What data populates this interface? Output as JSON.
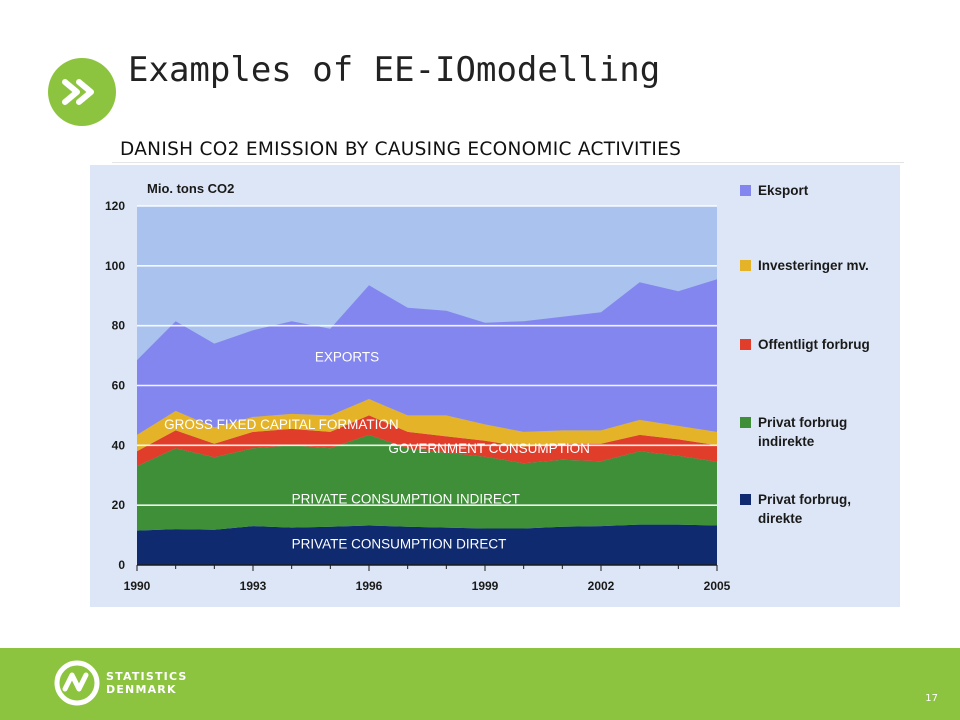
{
  "slide": {
    "title": "Examples of EE-IOmodelling",
    "badge_symbol": ">>",
    "subtitle": "DANISH CO2 EMISSION BY CAUSING ECONOMIC ACTIVITIES",
    "page_number": "17",
    "brand_line1": "STATISTICS",
    "brand_line2": "DENMARK"
  },
  "colors": {
    "accent_green": "#8dc43f",
    "chart_bg": "#dde6f6",
    "plot_bg": "#a9c3ee",
    "gridline": "#ffffff"
  },
  "chart_data": {
    "type": "area",
    "stacked": true,
    "unit_label": "Mio. tons CO2",
    "x": [
      1990,
      1991,
      1992,
      1993,
      1994,
      1995,
      1996,
      1997,
      1998,
      1999,
      2000,
      2001,
      2002,
      2003,
      2004,
      2005
    ],
    "xtick_labels": [
      "1990",
      "1993",
      "1996",
      "1999",
      "2002",
      "2005"
    ],
    "ylim": [
      0,
      120
    ],
    "yticks": [
      0,
      20,
      40,
      60,
      80,
      100,
      120
    ],
    "grid": true,
    "legend_position": "right",
    "series": [
      {
        "name": "Privat forbrug, direkte",
        "color": "#0f2a6e",
        "values": [
          11.5,
          12,
          11.8,
          13,
          12.5,
          12.8,
          13.2,
          12.8,
          12.5,
          12.2,
          12.2,
          12.8,
          13,
          13.5,
          13.5,
          13.2
        ]
      },
      {
        "name": "Privat forbrug indirekte",
        "color": "#3e8f37",
        "values": [
          21.5,
          27,
          24.2,
          26,
          27.5,
          26.2,
          30.3,
          26.2,
          25,
          24,
          21.8,
          22.4,
          21.7,
          24.5,
          23,
          21.3
        ]
      },
      {
        "name": "Offentligt forbrug",
        "color": "#e03d2a",
        "values": [
          5,
          6,
          4.5,
          5.5,
          5.5,
          5.5,
          6.5,
          5.5,
          5.5,
          5.3,
          5.5,
          5.3,
          5.8,
          5.5,
          5.5,
          5.5
        ]
      },
      {
        "name": "Investeringer mv.",
        "color": "#e4b327",
        "values": [
          5.5,
          6.5,
          5.5,
          5,
          5,
          5.5,
          5.5,
          5.5,
          7,
          5.5,
          5,
          4.5,
          4.5,
          5,
          4.5,
          4.5
        ]
      },
      {
        "name": "Eksport",
        "color": "#8486ef",
        "values": [
          25,
          30,
          28,
          29,
          31,
          29,
          38,
          36,
          35,
          34,
          37,
          38,
          39.5,
          46,
          45,
          51
        ]
      }
    ],
    "annotations": [
      {
        "text": "EXPORTS",
        "x": 1994.6,
        "y": 68
      },
      {
        "text": "GROSS FIXED CAPITAL FORMATION",
        "x": 1990.7,
        "y": 45.5
      },
      {
        "text": "GOVERNMENT CONSUMPTION",
        "x": 1996.5,
        "y": 37.5
      },
      {
        "text": "PRIVATE CONSUMPTION INDIRECT",
        "x": 1994,
        "y": 20.5
      },
      {
        "text": "PRIVATE CONSUMPTION DIRECT",
        "x": 1994,
        "y": 5.5
      }
    ]
  },
  "legend_display": [
    {
      "lines": [
        "Eksport"
      ],
      "color": "#8486ef"
    },
    {
      "lines": [
        "Investeringer mv."
      ],
      "color": "#e4b327"
    },
    {
      "lines": [
        "Offentligt forbrug"
      ],
      "color": "#e03d2a"
    },
    {
      "lines": [
        "Privat forbrug",
        "indirekte"
      ],
      "color": "#3e8f37"
    },
    {
      "lines": [
        "Privat forbrug,",
        "direkte"
      ],
      "color": "#0f2a6e"
    }
  ]
}
